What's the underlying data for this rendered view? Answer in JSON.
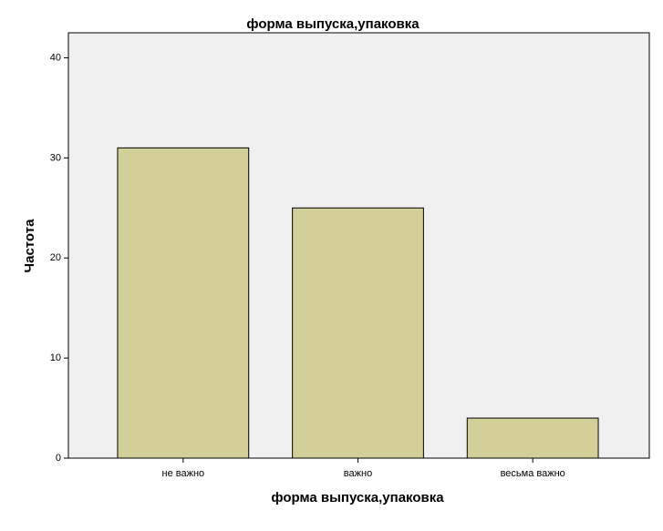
{
  "chart_data": {
    "type": "bar",
    "title": "форма выпуска,упаковка",
    "x_label": "форма выпуска,упаковка",
    "y_label": "Частота",
    "categories": [
      "не важно",
      "важно",
      "весьма важно"
    ],
    "values": [
      31,
      25,
      4
    ],
    "color": "#d3cf98",
    "ylim": [
      0,
      42.5
    ],
    "yticks": [
      0,
      10,
      20,
      30,
      40
    ],
    "grid": false
  }
}
